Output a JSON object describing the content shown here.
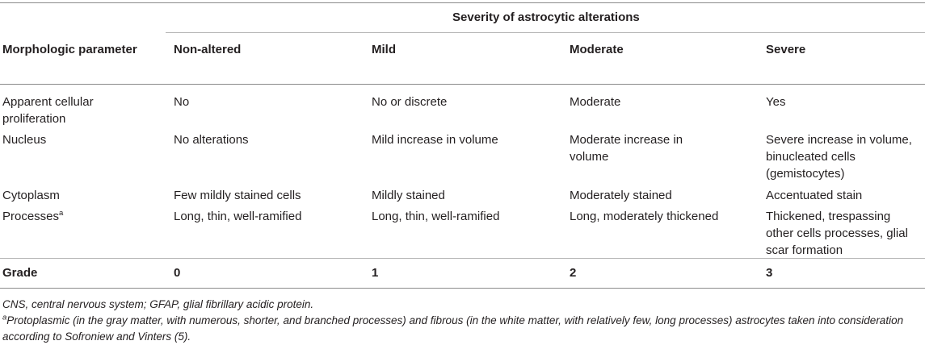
{
  "table": {
    "group_header": "Severity of astrocytic alterations",
    "columns": [
      "Morphologic parameter",
      "Non-altered",
      "Mild",
      "Moderate",
      "Severe"
    ],
    "rows": [
      {
        "parameter": "Apparent cellular proliferation",
        "cells": [
          "No",
          "No or discrete",
          "Moderate",
          "Yes"
        ]
      },
      {
        "parameter": "Nucleus",
        "cells": [
          "No alterations",
          "Mild increase in volume",
          "Moderate increase in volume",
          "Severe increase in volume, binucleated cells (gemistocytes)"
        ]
      },
      {
        "parameter": "Cytoplasm",
        "cells": [
          "Few mildly stained cells",
          "Mildly stained",
          "Moderately stained",
          "Accentuated stain"
        ]
      },
      {
        "parameter": "Processes",
        "parameter_sup": "a",
        "cells": [
          "Long, thin, well-ramified",
          "Long, thin, well-ramified",
          "Long, moderately thickened",
          "Thickened, trespassing other cells processes, glial scar formation"
        ]
      }
    ],
    "grade": {
      "label": "Grade",
      "values": [
        "0",
        "1",
        "2",
        "3"
      ]
    }
  },
  "footnotes": {
    "abbreviations": "CNS, central nervous system; GFAP, glial fibrillary acidic protein.",
    "note_a_marker": "a",
    "note_a_text": "Protoplasmic (in the gray matter, with numerous, shorter, and branched processes) and fibrous (in the white matter, with relatively few, long processes) astrocytes taken into consideration according to Sofroniew and Vinters (5)."
  }
}
